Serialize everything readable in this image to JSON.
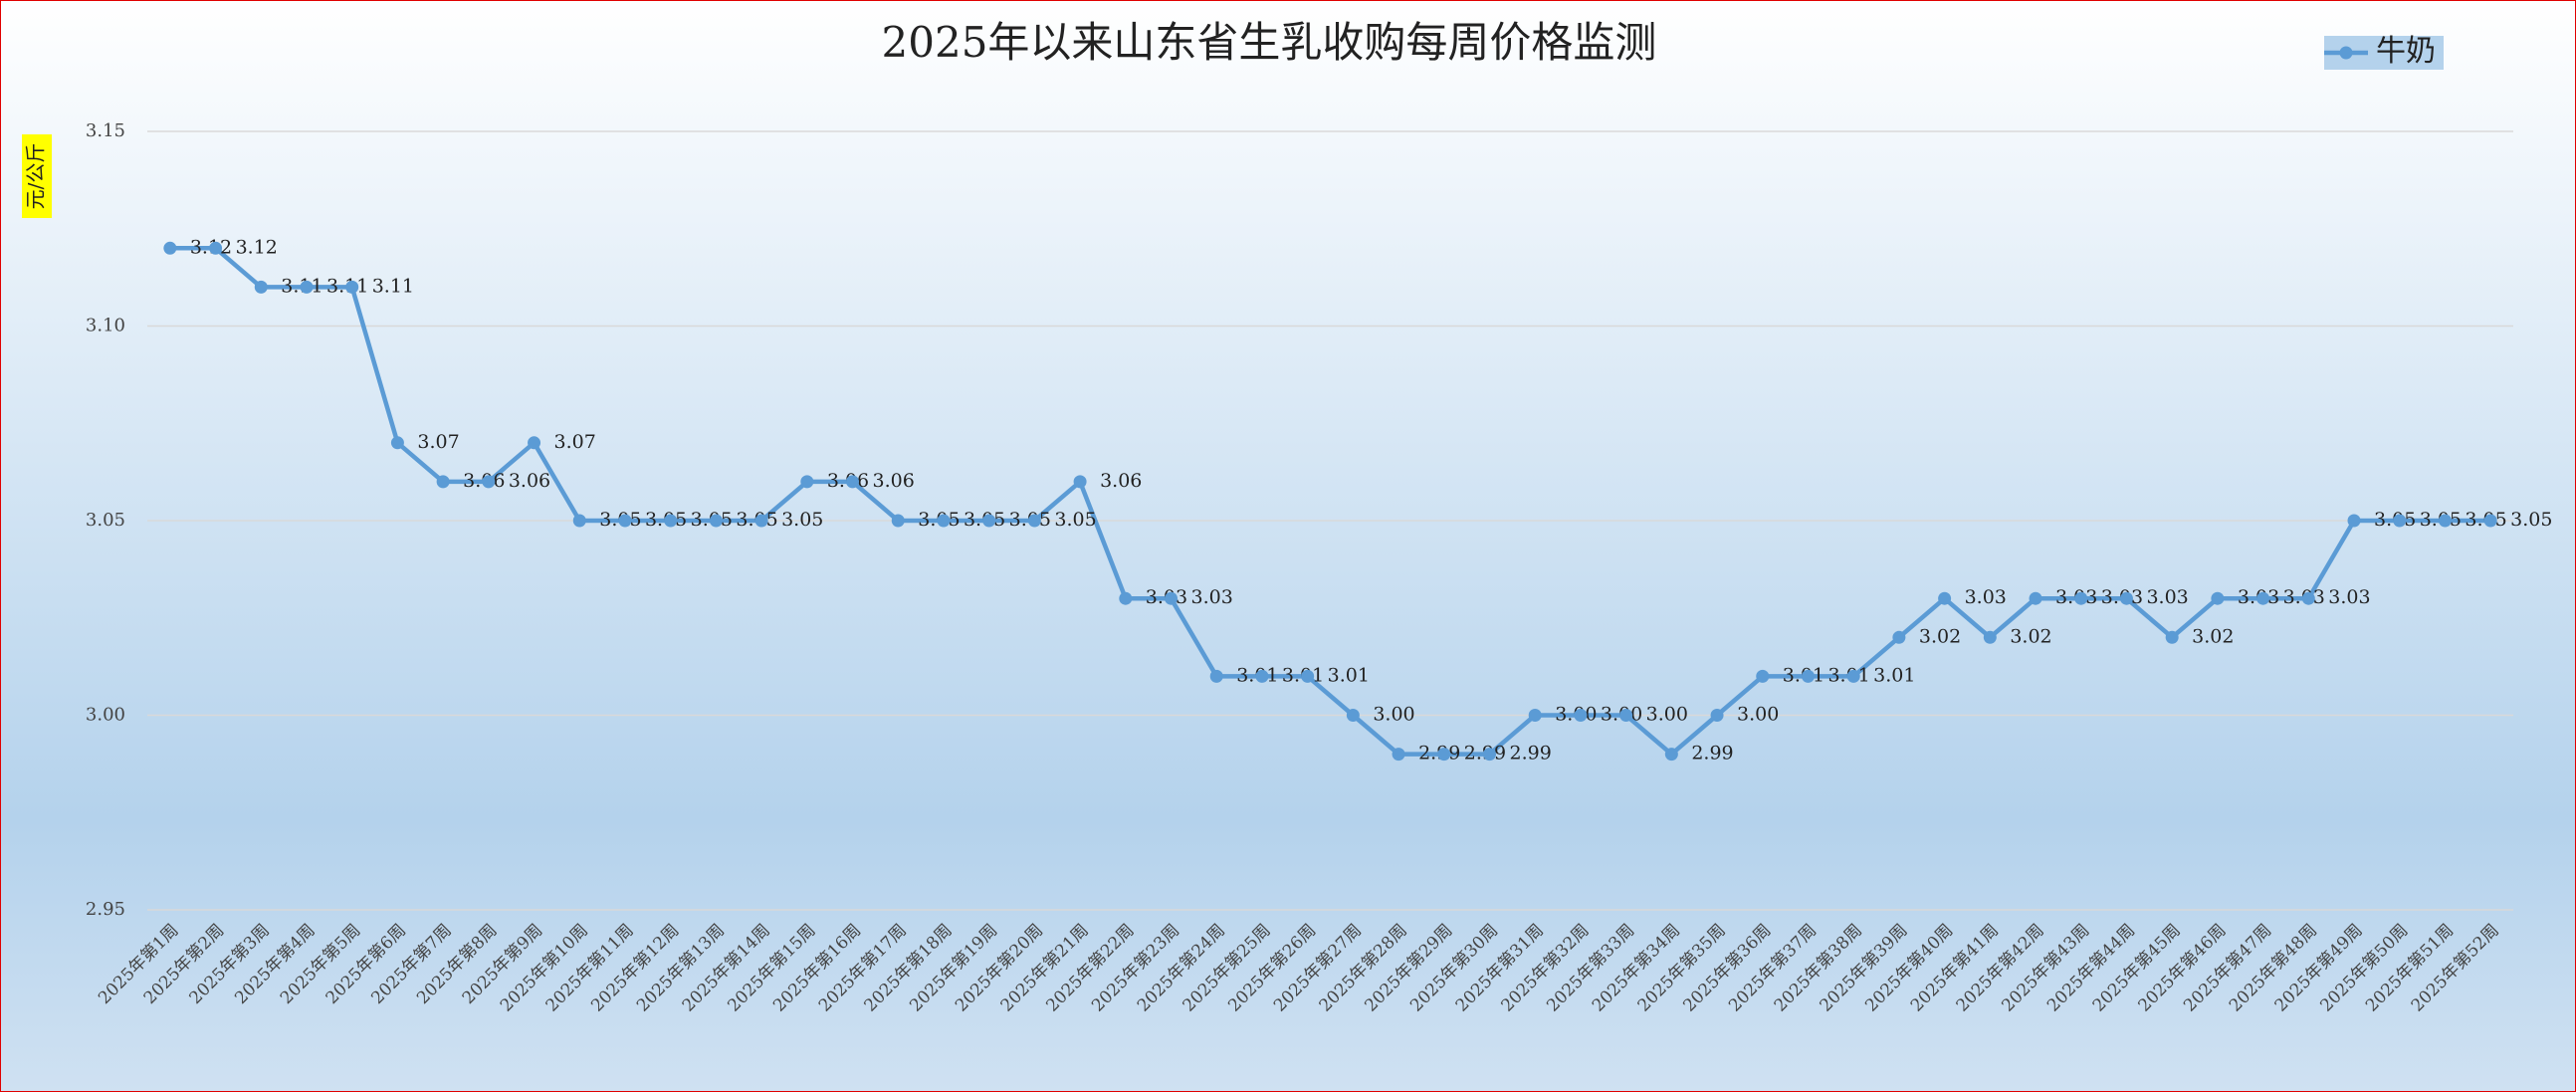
{
  "chart_data": {
    "type": "line",
    "title": "2025年以来山东省生乳收购每周价格监测",
    "y_axis_label": "元/公斤",
    "categories": [
      "2025年第1周",
      "2025年第2周",
      "2025年第3周",
      "2025年第4周",
      "2025年第5周",
      "2025年第6周",
      "2025年第7周",
      "2025年第8周",
      "2025年第9周",
      "2025年第10周",
      "2025年第11周",
      "2025年第12周",
      "2025年第13周",
      "2025年第14周",
      "2025年第15周",
      "2025年第16周",
      "2025年第17周",
      "2025年第18周",
      "2025年第19周",
      "2025年第20周",
      "2025年第21周",
      "2025年第22周",
      "2025年第23周",
      "2025年第24周",
      "2025年第25周",
      "2025年第26周",
      "2025年第27周",
      "2025年第28周",
      "2025年第29周",
      "2025年第30周",
      "2025年第31周",
      "2025年第32周",
      "2025年第33周",
      "2025年第34周",
      "2025年第35周",
      "2025年第36周",
      "2025年第37周",
      "2025年第38周",
      "2025年第39周",
      "2025年第40周",
      "2025年第41周",
      "2025年第42周",
      "2025年第43周",
      "2025年第44周",
      "2025年第45周",
      "2025年第46周",
      "2025年第47周",
      "2025年第48周",
      "2025年第49周",
      "2025年第50周",
      "2025年第51周",
      "2025年第52周"
    ],
    "series": [
      {
        "name": "牛奶",
        "color": "#5b9bd5",
        "values": [
          3.12,
          3.12,
          3.11,
          3.11,
          3.11,
          3.07,
          3.06,
          3.06,
          3.07,
          3.05,
          3.05,
          3.05,
          3.05,
          3.05,
          3.06,
          3.06,
          3.05,
          3.05,
          3.05,
          3.05,
          3.06,
          3.03,
          3.03,
          3.01,
          3.01,
          3.01,
          3.0,
          2.99,
          2.99,
          2.99,
          3.0,
          3.0,
          3.0,
          2.99,
          3.0,
          3.01,
          3.01,
          3.01,
          3.02,
          3.03,
          3.02,
          3.03,
          3.03,
          3.03,
          3.02,
          3.03,
          3.03,
          3.03,
          3.05,
          3.05,
          3.05,
          3.05
        ],
        "value_labels": [
          "3.12",
          "3.12",
          "3.11",
          "3.11",
          "3.11",
          "3.07",
          "3.06",
          "3.06",
          "3.07",
          "3.05",
          "3.05",
          "3.05",
          "3.05",
          "3.05",
          "3.06",
          "3.06",
          "3.05",
          "3.05",
          "3.05",
          "3.05",
          "3.06",
          "3.03",
          "3.03",
          "3.01",
          "3.01",
          "3.01",
          "3.00",
          "2.99",
          "2.99",
          "2.99",
          "3.00",
          "3.00",
          "3.00",
          "2.99",
          "3.00",
          "3.01",
          "3.01",
          "3.01",
          "3.02",
          "3.03",
          "3.02",
          "3.03",
          "3.03",
          "3.03",
          "3.02",
          "3.03",
          "3.03",
          "3.03",
          "3.05",
          "3.05",
          "3.05",
          "3.05"
        ]
      }
    ],
    "ylim": [
      2.95,
      3.15
    ],
    "yticks": [
      2.95,
      {
        "value": 3,
        "label": "3.00"
      },
      3.05,
      {
        "value": 3.1,
        "label": "3.10"
      },
      3.15
    ],
    "grid": true,
    "legend": "top-right"
  }
}
